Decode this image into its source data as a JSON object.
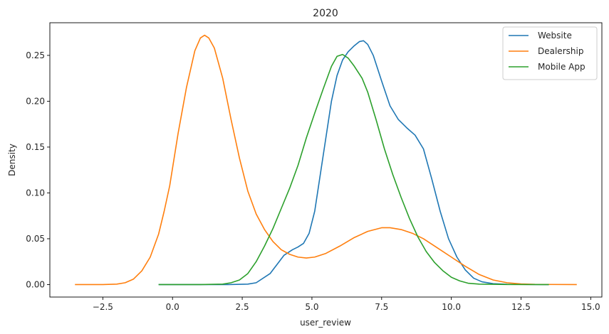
{
  "chart_data": {
    "type": "line",
    "title": "2020",
    "xlabel": "user_review",
    "ylabel": "Density",
    "xlim": [
      -4.4,
      15.4
    ],
    "ylim": [
      -0.0136,
      0.2856
    ],
    "x_ticks": [
      -2.5,
      0.0,
      2.5,
      5.0,
      7.5,
      10.0,
      12.5,
      15.0
    ],
    "x_tick_labels": [
      "−2.5",
      "0.0",
      "2.5",
      "5.0",
      "7.5",
      "10.0",
      "12.5",
      "15.0"
    ],
    "y_ticks": [
      0.0,
      0.05,
      0.1,
      0.15,
      0.2,
      0.25
    ],
    "y_tick_labels": [
      "0.00",
      "0.05",
      "0.10",
      "0.15",
      "0.20",
      "0.25"
    ],
    "grid": false,
    "legend_position": "top-right",
    "series": [
      {
        "name": "Website",
        "color": "#1f77b4",
        "points": [
          [
            -0.5,
            0
          ],
          [
            1,
            0
          ],
          [
            2,
            0
          ],
          [
            2.7,
            0.0005
          ],
          [
            3,
            0.002
          ],
          [
            3.5,
            0.012
          ],
          [
            3.8,
            0.024
          ],
          [
            4.0,
            0.032
          ],
          [
            4.3,
            0.038
          ],
          [
            4.5,
            0.041
          ],
          [
            4.7,
            0.045
          ],
          [
            4.9,
            0.056
          ],
          [
            5.1,
            0.08
          ],
          [
            5.3,
            0.12
          ],
          [
            5.5,
            0.16
          ],
          [
            5.7,
            0.2
          ],
          [
            5.9,
            0.228
          ],
          [
            6.1,
            0.245
          ],
          [
            6.3,
            0.254
          ],
          [
            6.5,
            0.26
          ],
          [
            6.7,
            0.265
          ],
          [
            6.85,
            0.266
          ],
          [
            7.0,
            0.262
          ],
          [
            7.2,
            0.25
          ],
          [
            7.5,
            0.222
          ],
          [
            7.8,
            0.195
          ],
          [
            8.1,
            0.18
          ],
          [
            8.4,
            0.171
          ],
          [
            8.7,
            0.163
          ],
          [
            9.0,
            0.148
          ],
          [
            9.3,
            0.115
          ],
          [
            9.6,
            0.08
          ],
          [
            9.9,
            0.05
          ],
          [
            10.2,
            0.03
          ],
          [
            10.5,
            0.016
          ],
          [
            10.8,
            0.007
          ],
          [
            11.1,
            0.003
          ],
          [
            11.5,
            0.001
          ],
          [
            12,
            0.0003
          ],
          [
            13.5,
            0
          ]
        ]
      },
      {
        "name": "Dealership",
        "color": "#ff7f0e",
        "points": [
          [
            -3.5,
            0
          ],
          [
            -2.5,
            0
          ],
          [
            -2.0,
            0.0005
          ],
          [
            -1.7,
            0.002
          ],
          [
            -1.4,
            0.006
          ],
          [
            -1.1,
            0.015
          ],
          [
            -0.8,
            0.03
          ],
          [
            -0.5,
            0.055
          ],
          [
            -0.3,
            0.08
          ],
          [
            -0.1,
            0.108
          ],
          [
            0.2,
            0.165
          ],
          [
            0.5,
            0.215
          ],
          [
            0.8,
            0.255
          ],
          [
            1.0,
            0.269
          ],
          [
            1.15,
            0.272
          ],
          [
            1.3,
            0.269
          ],
          [
            1.5,
            0.258
          ],
          [
            1.8,
            0.225
          ],
          [
            2.1,
            0.18
          ],
          [
            2.4,
            0.138
          ],
          [
            2.7,
            0.102
          ],
          [
            3.0,
            0.077
          ],
          [
            3.3,
            0.06
          ],
          [
            3.6,
            0.047
          ],
          [
            3.9,
            0.038
          ],
          [
            4.2,
            0.033
          ],
          [
            4.5,
            0.03
          ],
          [
            4.8,
            0.029
          ],
          [
            5.1,
            0.03
          ],
          [
            5.5,
            0.034
          ],
          [
            6.0,
            0.042
          ],
          [
            6.5,
            0.051
          ],
          [
            7.0,
            0.058
          ],
          [
            7.5,
            0.062
          ],
          [
            7.8,
            0.062
          ],
          [
            8.2,
            0.06
          ],
          [
            8.6,
            0.056
          ],
          [
            9.0,
            0.05
          ],
          [
            9.5,
            0.04
          ],
          [
            10.0,
            0.03
          ],
          [
            10.5,
            0.02
          ],
          [
            11.0,
            0.011
          ],
          [
            11.5,
            0.005
          ],
          [
            12.0,
            0.002
          ],
          [
            12.5,
            0.0007
          ],
          [
            13.0,
            0.0002
          ],
          [
            14.5,
            0
          ]
        ]
      },
      {
        "name": "Mobile App",
        "color": "#2ca02c",
        "points": [
          [
            -0.5,
            0
          ],
          [
            1,
            0
          ],
          [
            1.8,
            0.0005
          ],
          [
            2.1,
            0.002
          ],
          [
            2.4,
            0.005
          ],
          [
            2.7,
            0.012
          ],
          [
            3.0,
            0.025
          ],
          [
            3.3,
            0.042
          ],
          [
            3.6,
            0.061
          ],
          [
            3.9,
            0.083
          ],
          [
            4.2,
            0.105
          ],
          [
            4.5,
            0.13
          ],
          [
            4.8,
            0.16
          ],
          [
            5.1,
            0.187
          ],
          [
            5.4,
            0.213
          ],
          [
            5.7,
            0.238
          ],
          [
            5.9,
            0.249
          ],
          [
            6.1,
            0.251
          ],
          [
            6.3,
            0.247
          ],
          [
            6.5,
            0.239
          ],
          [
            6.8,
            0.225
          ],
          [
            7.0,
            0.21
          ],
          [
            7.3,
            0.18
          ],
          [
            7.6,
            0.148
          ],
          [
            7.9,
            0.12
          ],
          [
            8.2,
            0.095
          ],
          [
            8.5,
            0.072
          ],
          [
            8.8,
            0.052
          ],
          [
            9.1,
            0.036
          ],
          [
            9.4,
            0.024
          ],
          [
            9.7,
            0.015
          ],
          [
            10.0,
            0.008
          ],
          [
            10.3,
            0.004
          ],
          [
            10.6,
            0.0015
          ],
          [
            11.0,
            0.0005
          ],
          [
            12,
            0.0001
          ],
          [
            13.5,
            0
          ]
        ]
      }
    ]
  }
}
